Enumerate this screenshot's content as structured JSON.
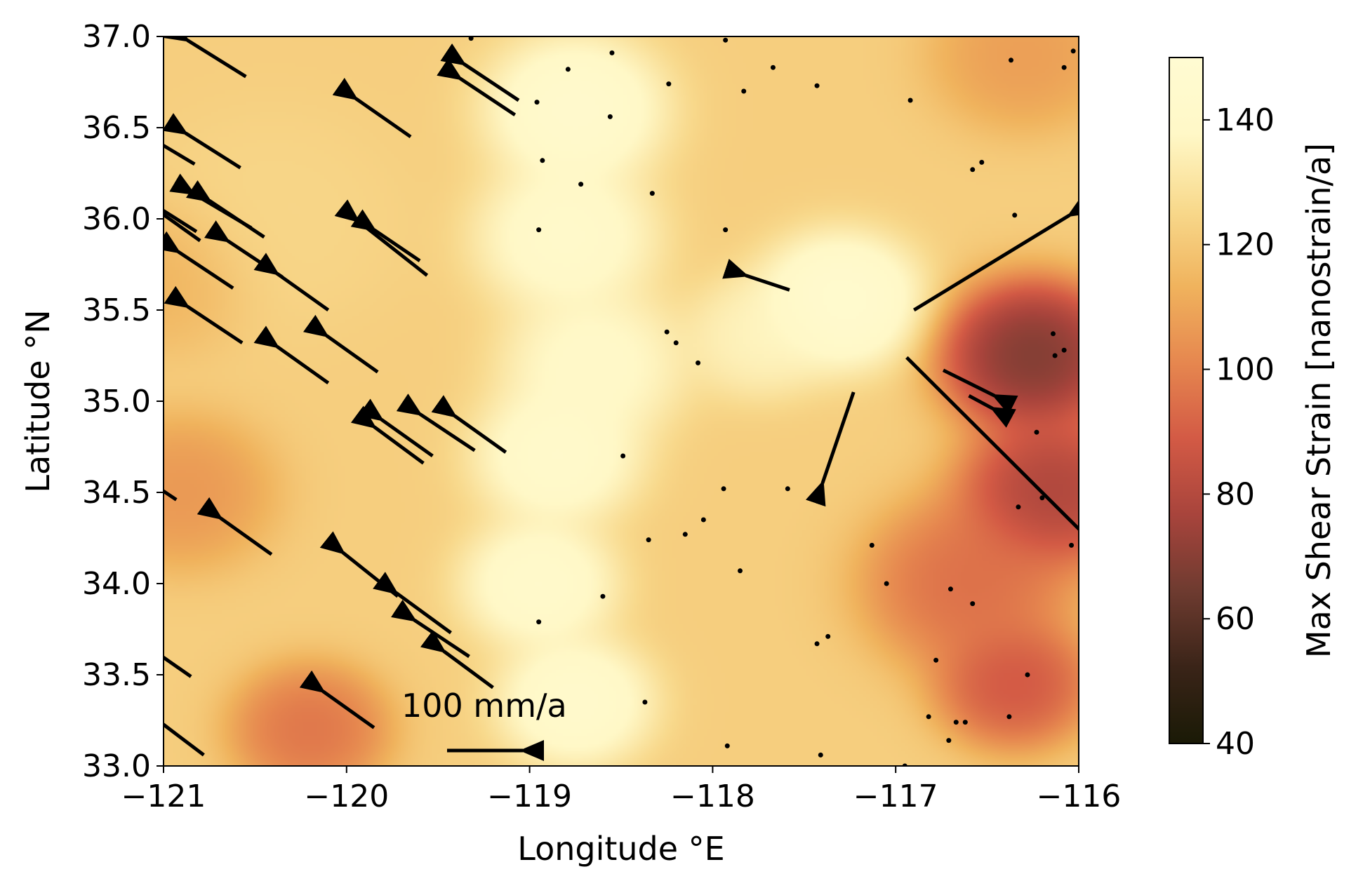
{
  "chart_data": {
    "type": "heatmap",
    "title": "",
    "xlabel": "Longitude °E",
    "ylabel": "Latitude °N",
    "xlim": [
      -121,
      -116
    ],
    "ylim": [
      33.0,
      37.0
    ],
    "xticks": [
      -121,
      -120,
      -119,
      -118,
      -117,
      -116
    ],
    "xtick_labels": [
      "−121",
      "−120",
      "−119",
      "−118",
      "−117",
      "−116"
    ],
    "yticks": [
      33.0,
      33.5,
      34.0,
      34.5,
      35.0,
      35.5,
      36.0,
      36.5,
      37.0
    ],
    "ytick_labels": [
      "33.0",
      "33.5",
      "34.0",
      "34.5",
      "35.0",
      "35.5",
      "36.0",
      "36.5",
      "37.0"
    ],
    "colorbar": {
      "label": "Max Shear Strain [nanostrain/a]",
      "range": [
        40,
        150
      ],
      "ticks": [
        40,
        60,
        80,
        100,
        120,
        140
      ],
      "colormap": [
        "#1a1a06",
        "#3a2418",
        "#6e3b30",
        "#a8443c",
        "#d35a45",
        "#e6874f",
        "#f0b35d",
        "#f8d98c",
        "#fff8c7",
        "#fffbd2"
      ]
    },
    "field_blobs": [
      {
        "lon": -118.75,
        "lat": 36.6,
        "value": 148,
        "spread": 0.35
      },
      {
        "lon": -118.8,
        "lat": 35.9,
        "value": 145,
        "spread": 0.35
      },
      {
        "lon": -118.65,
        "lat": 35.2,
        "value": 143,
        "spread": 0.35
      },
      {
        "lon": -118.85,
        "lat": 34.7,
        "value": 146,
        "spread": 0.32
      },
      {
        "lon": -118.95,
        "lat": 34.0,
        "value": 146,
        "spread": 0.3
      },
      {
        "lon": -118.75,
        "lat": 33.35,
        "value": 147,
        "spread": 0.3
      },
      {
        "lon": -117.3,
        "lat": 35.55,
        "value": 150,
        "spread": 0.32
      },
      {
        "lon": -117.75,
        "lat": 35.35,
        "value": 138,
        "spread": 0.28
      },
      {
        "lon": -116.25,
        "lat": 35.25,
        "value": 58,
        "spread": 0.35
      },
      {
        "lon": -116.15,
        "lat": 34.5,
        "value": 70,
        "spread": 0.35
      },
      {
        "lon": -116.35,
        "lat": 33.45,
        "value": 82,
        "spread": 0.3
      },
      {
        "lon": -116.6,
        "lat": 34.0,
        "value": 90,
        "spread": 0.4
      },
      {
        "lon": -120.2,
        "lat": 33.2,
        "value": 92,
        "spread": 0.3
      },
      {
        "lon": -120.9,
        "lat": 34.5,
        "value": 103,
        "spread": 0.35
      },
      {
        "lon": -121.0,
        "lat": 35.7,
        "value": 112,
        "spread": 0.35
      },
      {
        "lon": -116.3,
        "lat": 36.9,
        "value": 105,
        "spread": 0.35
      },
      {
        "lon": -120.4,
        "lat": 36.0,
        "value": 125,
        "spread": 0.5
      }
    ],
    "field_background": 122,
    "quiver_scale_label": "100 mm/a",
    "quiver_scale_value": 100,
    "vectors": [
      {
        "lon": -120.74,
        "lat": 37.05,
        "dx": -0.3,
        "dy": 0.2
      },
      {
        "lon": -120.55,
        "lat": 36.78,
        "dx": -0.32,
        "dy": 0.2
      },
      {
        "lon": -120.83,
        "lat": 36.3,
        "dx": -0.35,
        "dy": 0.21
      },
      {
        "lon": -120.58,
        "lat": 36.28,
        "dx": -0.3,
        "dy": 0.19
      },
      {
        "lon": -119.65,
        "lat": 36.45,
        "dx": -0.3,
        "dy": 0.21
      },
      {
        "lon": -119.06,
        "lat": 36.65,
        "dx": -0.3,
        "dy": 0.2
      },
      {
        "lon": -119.08,
        "lat": 36.57,
        "dx": -0.3,
        "dy": 0.2
      },
      {
        "lon": -120.82,
        "lat": 35.93,
        "dx": -0.33,
        "dy": 0.21
      },
      {
        "lon": -120.45,
        "lat": 35.9,
        "dx": -0.3,
        "dy": 0.2
      },
      {
        "lon": -120.52,
        "lat": 35.95,
        "dx": -0.32,
        "dy": 0.19
      },
      {
        "lon": -120.62,
        "lat": 35.62,
        "dx": -0.3,
        "dy": 0.2
      },
      {
        "lon": -120.35,
        "lat": 35.68,
        "dx": -0.3,
        "dy": 0.2
      },
      {
        "lon": -120.1,
        "lat": 35.5,
        "dx": -0.28,
        "dy": 0.2
      },
      {
        "lon": -120.57,
        "lat": 35.32,
        "dx": -0.3,
        "dy": 0.2
      },
      {
        "lon": -119.83,
        "lat": 35.16,
        "dx": -0.28,
        "dy": 0.2
      },
      {
        "lon": -120.1,
        "lat": 35.1,
        "dx": -0.28,
        "dy": 0.2
      },
      {
        "lon": -119.56,
        "lat": 35.69,
        "dx": -0.38,
        "dy": 0.3
      },
      {
        "lon": -119.6,
        "lat": 35.77,
        "dx": -0.25,
        "dy": 0.17
      },
      {
        "lon": -119.13,
        "lat": 34.72,
        "dx": -0.28,
        "dy": 0.2
      },
      {
        "lon": -119.3,
        "lat": 34.73,
        "dx": -0.3,
        "dy": 0.2
      },
      {
        "lon": -119.53,
        "lat": 34.7,
        "dx": -0.28,
        "dy": 0.2
      },
      {
        "lon": -119.58,
        "lat": 34.66,
        "dx": -0.27,
        "dy": 0.2
      },
      {
        "lon": -120.41,
        "lat": 34.16,
        "dx": -0.28,
        "dy": 0.2
      },
      {
        "lon": -119.72,
        "lat": 33.93,
        "dx": -0.3,
        "dy": 0.24
      },
      {
        "lon": -119.43,
        "lat": 33.73,
        "dx": -0.3,
        "dy": 0.22
      },
      {
        "lon": -119.33,
        "lat": 33.6,
        "dx": -0.3,
        "dy": 0.2
      },
      {
        "lon": -119.2,
        "lat": 33.43,
        "dx": -0.27,
        "dy": 0.2
      },
      {
        "lon": -119.85,
        "lat": 33.21,
        "dx": -0.28,
        "dy": 0.2
      },
      {
        "lon": -120.93,
        "lat": 34.46,
        "dx": -0.15,
        "dy": 0.1
      },
      {
        "lon": -120.85,
        "lat": 33.49,
        "dx": -0.2,
        "dy": 0.14
      },
      {
        "lon": -120.78,
        "lat": 33.06,
        "dx": -0.25,
        "dy": 0.19
      },
      {
        "lon": -120.8,
        "lat": 35.88,
        "dx": -0.28,
        "dy": 0.2
      },
      {
        "lon": -117.58,
        "lat": 35.61,
        "dx": -0.24,
        "dy": 0.08
      },
      {
        "lon": -117.23,
        "lat": 35.05,
        "dx": -0.17,
        "dy": -0.5
      },
      {
        "lon": -116.74,
        "lat": 35.17,
        "dx": 0.28,
        "dy": -0.14
      },
      {
        "lon": -116.6,
        "lat": 35.03,
        "dx": 0.13,
        "dy": -0.07
      },
      {
        "lon": -116.9,
        "lat": 35.5,
        "dx": 0.85,
        "dy": 0.52
      },
      {
        "lon": -116.94,
        "lat": 35.24,
        "dx": 1.0,
        "dy": -1.0
      }
    ],
    "small_vectors": [
      {
        "lon": -118.79,
        "lat": 36.82
      },
      {
        "lon": -118.55,
        "lat": 36.91
      },
      {
        "lon": -117.93,
        "lat": 36.98
      },
      {
        "lon": -118.24,
        "lat": 36.74
      },
      {
        "lon": -117.67,
        "lat": 36.83
      },
      {
        "lon": -117.43,
        "lat": 36.73
      },
      {
        "lon": -116.92,
        "lat": 36.65
      },
      {
        "lon": -116.37,
        "lat": 36.87
      },
      {
        "lon": -116.08,
        "lat": 36.83
      },
      {
        "lon": -116.03,
        "lat": 36.92
      },
      {
        "lon": -118.96,
        "lat": 36.64
      },
      {
        "lon": -118.56,
        "lat": 36.56
      },
      {
        "lon": -117.83,
        "lat": 36.7
      },
      {
        "lon": -118.93,
        "lat": 36.32
      },
      {
        "lon": -118.72,
        "lat": 36.19
      },
      {
        "lon": -118.33,
        "lat": 36.14
      },
      {
        "lon": -118.95,
        "lat": 35.94
      },
      {
        "lon": -116.58,
        "lat": 36.27
      },
      {
        "lon": -116.53,
        "lat": 36.31
      },
      {
        "lon": -116.35,
        "lat": 36.02
      },
      {
        "lon": -117.93,
        "lat": 35.94
      },
      {
        "lon": -118.25,
        "lat": 35.38
      },
      {
        "lon": -118.2,
        "lat": 35.32
      },
      {
        "lon": -118.08,
        "lat": 35.21
      },
      {
        "lon": -116.14,
        "lat": 35.37
      },
      {
        "lon": -116.08,
        "lat": 35.28
      },
      {
        "lon": -116.13,
        "lat": 35.25
      },
      {
        "lon": -116.23,
        "lat": 34.83
      },
      {
        "lon": -118.49,
        "lat": 34.7
      },
      {
        "lon": -117.94,
        "lat": 34.52
      },
      {
        "lon": -117.59,
        "lat": 34.52
      },
      {
        "lon": -116.33,
        "lat": 34.42
      },
      {
        "lon": -116.2,
        "lat": 34.47
      },
      {
        "lon": -116.04,
        "lat": 34.21
      },
      {
        "lon": -118.35,
        "lat": 34.24
      },
      {
        "lon": -118.15,
        "lat": 34.27
      },
      {
        "lon": -118.05,
        "lat": 34.35
      },
      {
        "lon": -117.13,
        "lat": 34.21
      },
      {
        "lon": -117.85,
        "lat": 34.07
      },
      {
        "lon": -117.05,
        "lat": 34.0
      },
      {
        "lon": -118.6,
        "lat": 33.93
      },
      {
        "lon": -116.7,
        "lat": 33.97
      },
      {
        "lon": -118.95,
        "lat": 33.79
      },
      {
        "lon": -116.58,
        "lat": 33.89
      },
      {
        "lon": -117.43,
        "lat": 33.67
      },
      {
        "lon": -117.37,
        "lat": 33.71
      },
      {
        "lon": -116.78,
        "lat": 33.58
      },
      {
        "lon": -116.28,
        "lat": 33.5
      },
      {
        "lon": -118.37,
        "lat": 33.35
      },
      {
        "lon": -116.82,
        "lat": 33.27
      },
      {
        "lon": -116.67,
        "lat": 33.24
      },
      {
        "lon": -116.62,
        "lat": 33.24
      },
      {
        "lon": -116.38,
        "lat": 33.27
      },
      {
        "lon": -116.71,
        "lat": 33.14
      },
      {
        "lon": -117.92,
        "lat": 33.11
      },
      {
        "lon": -117.41,
        "lat": 33.06
      },
      {
        "lon": -116.95,
        "lat": 33.0
      },
      {
        "lon": -119.32,
        "lat": 36.99
      }
    ]
  }
}
